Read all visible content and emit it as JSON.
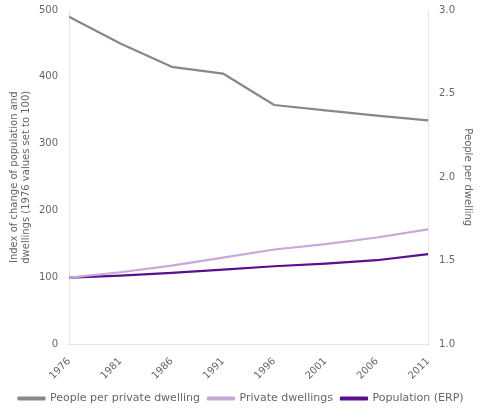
{
  "chart_data": {
    "type": "line",
    "x": [
      1976,
      1981,
      1986,
      1991,
      1996,
      2001,
      2006,
      2011
    ],
    "xlim": [
      1976,
      2011
    ],
    "xticks": [
      1976,
      1981,
      1986,
      1991,
      1996,
      2001,
      2006,
      2011
    ],
    "series": [
      {
        "name": "People per private dwelling",
        "color": "#888888",
        "values": [
          490,
          450,
          415,
          405,
          358,
          350,
          342,
          335
        ]
      },
      {
        "name": "Private dwellings",
        "color": "#c8a8d8",
        "values": [
          100,
          108,
          118,
          130,
          142,
          150,
          160,
          172
        ]
      },
      {
        "name": "Population (ERP)",
        "color": "#5b0f8b",
        "values": [
          100,
          103,
          107,
          112,
          117,
          121,
          126,
          135
        ]
      }
    ],
    "ylabel": "Index of change of population and\ndwellings (1976 values set to 100)",
    "ylim": [
      0,
      500
    ],
    "yticks": [
      0,
      100,
      200,
      300,
      400,
      500
    ],
    "y2label": "People per dwelling",
    "y2lim": [
      1.0,
      3.0
    ],
    "y2ticks": [
      {
        "value": 1.0,
        "label": "1.0"
      },
      {
        "value": 1.5,
        "label": "1.5"
      },
      {
        "value": 2.0,
        "label": "2.0"
      },
      {
        "value": 2.5,
        "label": "2.5"
      },
      {
        "value": 3.0,
        "label": "3.0"
      }
    ],
    "grid": false,
    "legend": "bottom"
  }
}
